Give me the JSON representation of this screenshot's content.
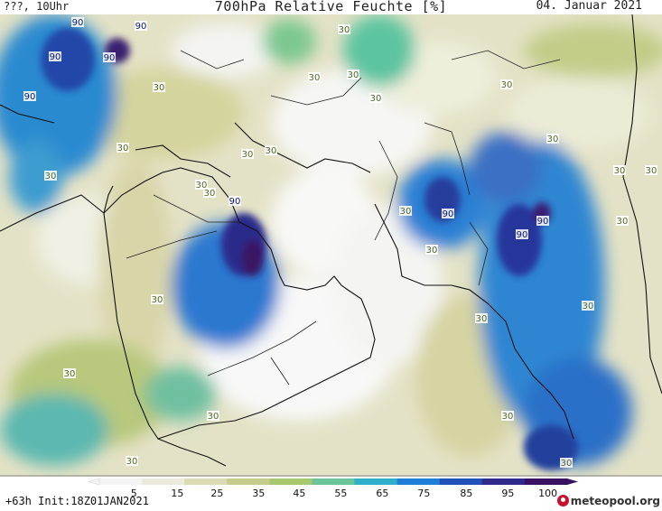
{
  "header": {
    "left_text": "???, 10Uhr",
    "title": "700hPa Relative Feuchte [%]",
    "date": "04. Januar 2021"
  },
  "footer": {
    "run_info": "+63h Init:18Z01JAN2021",
    "logo_text": "meteopool.org"
  },
  "colorbar": {
    "ticks": [
      "5",
      "15",
      "25",
      "35",
      "45",
      "55",
      "65",
      "75",
      "85",
      "95",
      "100"
    ],
    "colors": [
      "#f4f4f4",
      "#eceadb",
      "#dcdcb4",
      "#c6cc8c",
      "#a8c870",
      "#6cc49a",
      "#2fb0c8",
      "#1e7ed8",
      "#2050b8",
      "#302a8c",
      "#3a1060"
    ]
  },
  "contour_labels": [
    {
      "t": "90"
    },
    {
      "t": "90"
    },
    {
      "t": "90"
    },
    {
      "t": "90"
    },
    {
      "t": "90"
    },
    {
      "t": "90"
    },
    {
      "t": "90"
    },
    {
      "t": "90"
    },
    {
      "t": "90"
    },
    {
      "t": "30"
    },
    {
      "t": "30"
    },
    {
      "t": "30"
    },
    {
      "t": "30"
    },
    {
      "t": "30"
    },
    {
      "t": "30"
    },
    {
      "t": "30"
    },
    {
      "t": "30"
    },
    {
      "t": "30"
    },
    {
      "t": "30"
    },
    {
      "t": "30"
    },
    {
      "t": "30"
    },
    {
      "t": "30"
    },
    {
      "t": "30"
    },
    {
      "t": "30"
    },
    {
      "t": "30"
    },
    {
      "t": "30"
    },
    {
      "t": "30"
    },
    {
      "t": "30"
    },
    {
      "t": "30"
    },
    {
      "t": "30"
    },
    {
      "t": "30"
    },
    {
      "t": "30"
    },
    {
      "t": "30"
    },
    {
      "t": "30"
    },
    {
      "t": "30"
    }
  ]
}
